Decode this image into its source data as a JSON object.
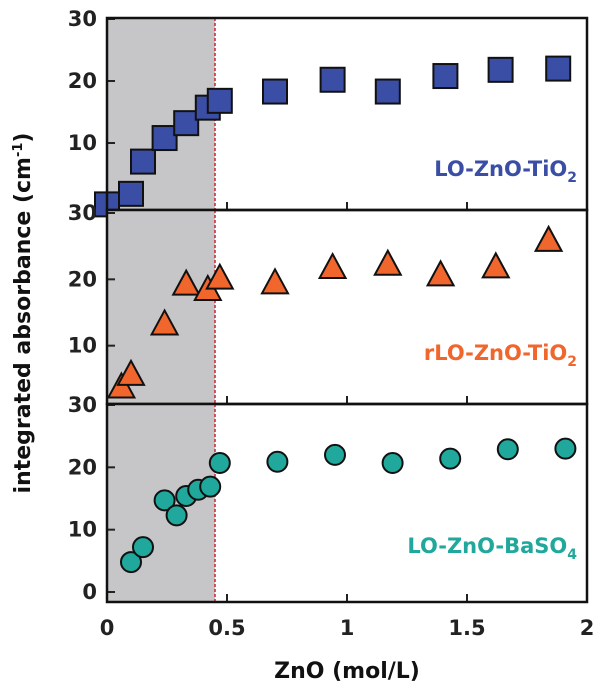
{
  "chart_data": {
    "type": "scatter",
    "xlabel": "ZnO (mol/L)",
    "ylabel": "integrated absorbance (cm",
    "ylabel_sup": "-1",
    "ylabel_close": ")",
    "x_ticks": [
      "0",
      "0.5",
      "1",
      "1.5",
      "2"
    ],
    "x_tick_values": [
      0,
      0.5,
      1,
      1.5,
      2
    ],
    "xlim": [
      0,
      2
    ],
    "shaded_region": [
      0,
      0.45
    ],
    "reference_line_x": 0.45,
    "colors": {
      "shade": "#c6c6c8",
      "refline": "#d0202a",
      "panel1": "#3b4ea5",
      "panel2": "#f0662c",
      "panel3": "#1fa89b"
    },
    "panels": [
      {
        "marker": "square",
        "label_parts": [
          "LO-ZnO-TiO",
          "2",
          ""
        ],
        "ylim": [
          0,
          30
        ],
        "y_ticks": [
          "30",
          "20",
          "10"
        ],
        "y_tick_values": [
          30,
          20,
          10
        ],
        "points": [
          {
            "x": 0.0,
            "y": 0.1
          },
          {
            "x": 0.1,
            "y": 1.8
          },
          {
            "x": 0.15,
            "y": 7.0
          },
          {
            "x": 0.24,
            "y": 10.8
          },
          {
            "x": 0.33,
            "y": 13.2
          },
          {
            "x": 0.42,
            "y": 15.7
          },
          {
            "x": 0.47,
            "y": 16.8
          },
          {
            "x": 0.7,
            "y": 18.3
          },
          {
            "x": 0.94,
            "y": 20.2
          },
          {
            "x": 1.17,
            "y": 18.3
          },
          {
            "x": 1.41,
            "y": 20.8
          },
          {
            "x": 1.64,
            "y": 21.8
          },
          {
            "x": 1.88,
            "y": 22.0
          }
        ]
      },
      {
        "marker": "triangle",
        "label_parts": [
          "rLO-ZnO-TiO",
          "2",
          ""
        ],
        "ylim": [
          0,
          30
        ],
        "y_ticks": [
          "30",
          "20",
          "10"
        ],
        "y_tick_values": [
          30,
          20,
          10
        ],
        "points": [
          {
            "x": 0.06,
            "y": 3.7
          },
          {
            "x": 0.1,
            "y": 5.6
          },
          {
            "x": 0.24,
            "y": 13.2
          },
          {
            "x": 0.33,
            "y": 19.2
          },
          {
            "x": 0.42,
            "y": 18.4
          },
          {
            "x": 0.47,
            "y": 20.1
          },
          {
            "x": 0.7,
            "y": 19.4
          },
          {
            "x": 0.94,
            "y": 21.7
          },
          {
            "x": 1.17,
            "y": 22.2
          },
          {
            "x": 1.39,
            "y": 20.6
          },
          {
            "x": 1.62,
            "y": 21.8
          },
          {
            "x": 1.84,
            "y": 25.8
          }
        ]
      },
      {
        "marker": "circle",
        "label_parts": [
          "LO-ZnO-BaSO",
          "4",
          ""
        ],
        "ylim": [
          0,
          30
        ],
        "y_ticks": [
          "30",
          "20",
          "10",
          "0"
        ],
        "y_tick_values": [
          30,
          20,
          10,
          0
        ],
        "points": [
          {
            "x": 0.1,
            "y": 4.8
          },
          {
            "x": 0.15,
            "y": 7.2
          },
          {
            "x": 0.24,
            "y": 14.7
          },
          {
            "x": 0.29,
            "y": 12.3
          },
          {
            "x": 0.33,
            "y": 15.4
          },
          {
            "x": 0.38,
            "y": 16.4
          },
          {
            "x": 0.43,
            "y": 16.9
          },
          {
            "x": 0.47,
            "y": 20.7
          },
          {
            "x": 0.71,
            "y": 20.9
          },
          {
            "x": 0.95,
            "y": 22.0
          },
          {
            "x": 1.19,
            "y": 20.7
          },
          {
            "x": 1.43,
            "y": 21.4
          },
          {
            "x": 1.67,
            "y": 22.9
          },
          {
            "x": 1.91,
            "y": 23.0
          }
        ]
      }
    ]
  }
}
